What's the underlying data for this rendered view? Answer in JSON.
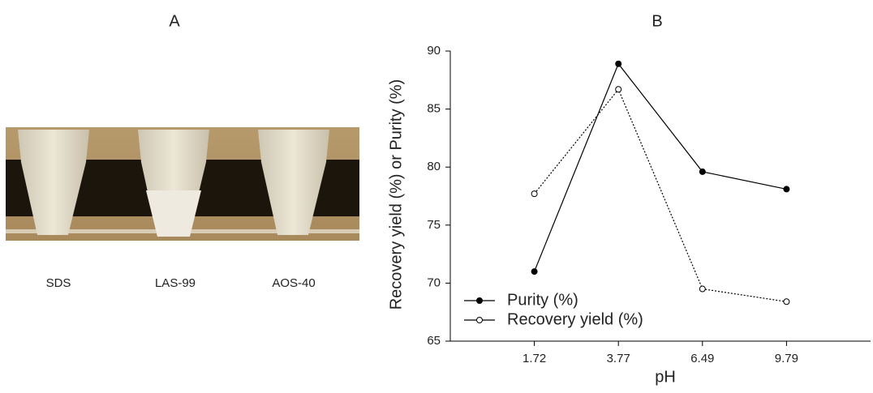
{
  "photo": {
    "label": "A",
    "tubes": [
      "SDS",
      "LAS-99",
      "AOS-40"
    ]
  },
  "chart_data": {
    "type": "line",
    "title": "B",
    "x_label": "pH",
    "y_label": "Recovery yield (%) or Purity (%)",
    "categories": [
      "1.72",
      "3.77",
      "6.49",
      "9.79"
    ],
    "series": [
      {
        "name": "Purity (%)",
        "color": "#000000",
        "line_style": "solid",
        "marker_fill": "filled",
        "values": [
          71.0,
          88.9,
          79.6,
          78.1
        ]
      },
      {
        "name": "Recovery yield (%)",
        "color": "#000000",
        "line_style": "dotted",
        "marker_fill": "open",
        "values": [
          77.7,
          86.7,
          69.5,
          68.4
        ]
      }
    ],
    "ylim": [
      65,
      90
    ],
    "yticks": [
      65,
      70,
      75,
      80,
      85,
      90
    ],
    "grid": false,
    "legend": "lower left"
  }
}
